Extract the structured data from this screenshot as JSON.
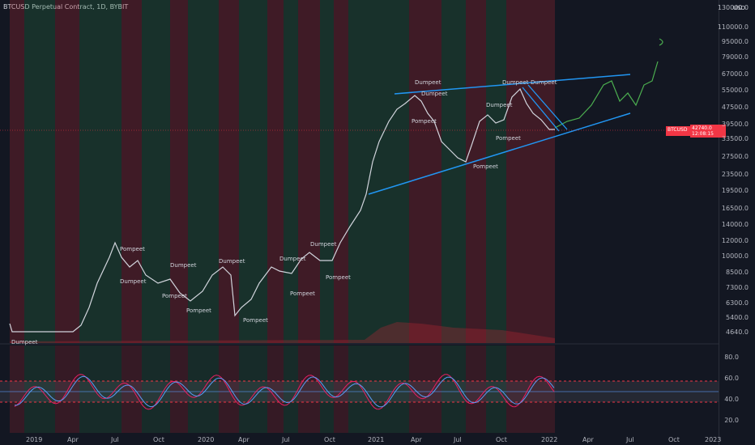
{
  "header": {
    "title": "BTCUSD Perpetual Contract, 1D, BYBIT"
  },
  "axis": {
    "currency": "USD",
    "price_ticks": [
      "130000.0",
      "110000.0",
      "95000.0",
      "79000.0",
      "67000.0",
      "55000.0",
      "47500.0",
      "39500.0",
      "33500.0",
      "27500.0",
      "23500.0",
      "19500.0",
      "16500.0",
      "14000.0",
      "12000.0",
      "10000.0",
      "8500.0",
      "7300.0",
      "6300.0",
      "5400.0",
      "4640.0"
    ],
    "rsi_ticks": [
      "80.0",
      "60.0",
      "40.0",
      "20.0"
    ],
    "date_ticks": [
      "2019",
      "Apr",
      "Jul",
      "Oct",
      "2020",
      "Apr",
      "Jul",
      "Oct",
      "2021",
      "Apr",
      "Jul",
      "Oct",
      "2022",
      "Apr",
      "Jul",
      "Oct",
      "2023"
    ]
  },
  "price_tag": {
    "symbol": "BTCUSD",
    "value": "42740.0",
    "countdown": "12:08:15"
  },
  "chart_data": {
    "type": "line",
    "title": "BTCUSD Perpetual Contract, 1D, BYBIT",
    "yscale": "log",
    "x": [
      "2019-01",
      "2019-03",
      "2019-05",
      "2019-07",
      "2019-09",
      "2019-11",
      "2020-01",
      "2020-03",
      "2020-05",
      "2020-07",
      "2020-09",
      "2020-11",
      "2021-01",
      "2021-03",
      "2021-05",
      "2021-07",
      "2021-09",
      "2021-11",
      "2022-01"
    ],
    "series": [
      {
        "values": [
          3700,
          3900,
          8000,
          11000,
          9500,
          7500,
          8000,
          5500,
          9000,
          9500,
          11000,
          17000,
          33000,
          57000,
          40000,
          35000,
          47000,
          65000,
          42740
        ]
      }
    ],
    "annotations": [
      "Dumpeet",
      "Pompeet",
      "Dumpeet",
      "Dumpeet",
      "Pompeet",
      "Pompeet",
      "Dumpeet",
      "Pompeet",
      "Dumpeet",
      "Pompeet",
      "Dumpeet",
      "Pompeet",
      "Dumpeet",
      "Pompeet",
      "Dumpeet",
      "Dumpeet",
      "Pompeet",
      "Dumpeet",
      "Pompeet",
      "Dumpeet"
    ],
    "rsi": {
      "ylim": [
        10,
        90
      ],
      "overbought": 60,
      "oversold": 40
    }
  }
}
